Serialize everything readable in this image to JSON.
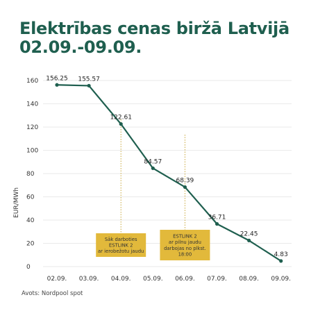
{
  "title_line1": "Elektrības cenas biržā Latvijā",
  "title_line2": "02.09.-09.09.",
  "source": "Avots: Nordpool spot",
  "colors": {
    "title": "#1f5f4f",
    "line": "#1f5f4f",
    "grid": "#e3e3e3",
    "annotation_box": "#e2b93b",
    "annotation_line": "#c8a83a"
  },
  "chart_data": {
    "type": "line",
    "categories": [
      "02.09.",
      "03.09.",
      "04.09.",
      "05.09.",
      "06.09.",
      "07.09.",
      "08.09.",
      "09.09."
    ],
    "series": [
      {
        "values": [
          156.25,
          155.57,
          122.61,
          84.57,
          68.39,
          36.71,
          22.45,
          4.83
        ]
      }
    ],
    "data_labels": [
      "156.25",
      "155.57",
      "122.61",
      "84.57",
      "68.39",
      "36.71",
      "22.45",
      "4.83"
    ],
    "title": "Elektrības cenas biržā Latvijā 02.09.-09.09.",
    "xlabel": "",
    "ylabel": "EUR/MWh",
    "ylim": [
      0,
      160
    ],
    "yticks": [
      0,
      20,
      40,
      60,
      80,
      100,
      120,
      140,
      160
    ],
    "grid": true,
    "annotations": [
      {
        "category": "04.09.",
        "text": [
          "Sāk darboties",
          "ESTLINK 2",
          "ar ierobežotu jaudu"
        ]
      },
      {
        "category": "06.09.",
        "text": [
          "ESTLINK 2",
          "ar pilnu jaudu",
          "darbojas no plkst.",
          "18:00"
        ]
      }
    ]
  }
}
